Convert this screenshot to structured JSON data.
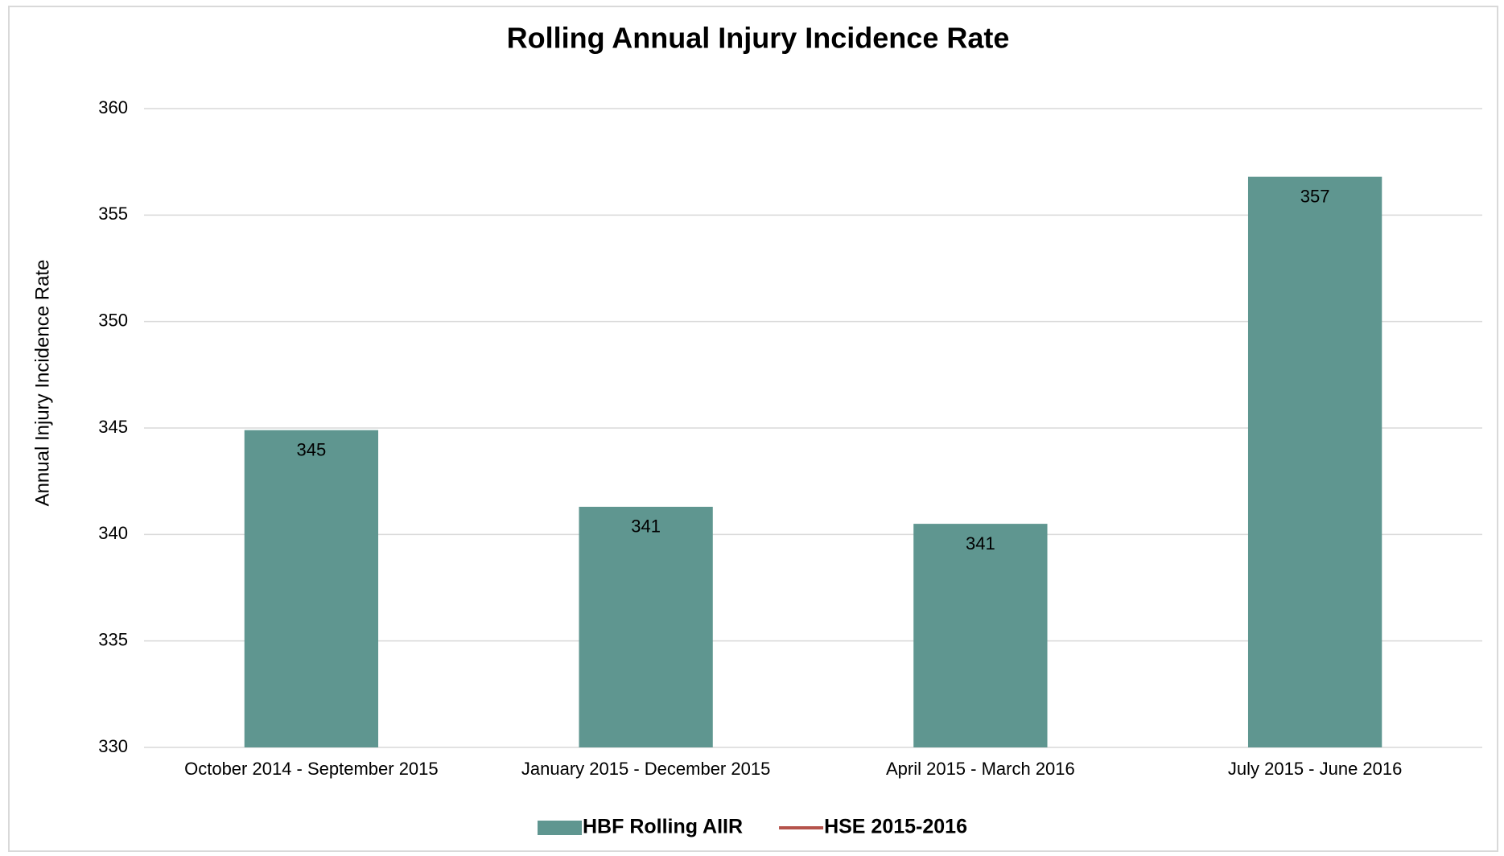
{
  "chart_data": {
    "type": "bar",
    "title": "Rolling Annual Injury Incidence Rate",
    "y_label": "Annual Injury Incidence Rate",
    "categories": [
      "October 2014 - September 2015",
      "January 2015 - December 2015",
      "April 2015 - March 2016",
      "July 2015 - June 2016"
    ],
    "series": [
      {
        "name": "HBF Rolling AIIR",
        "color": "#5f9690",
        "type": "bar",
        "values": [
          344.9,
          341.3,
          340.5,
          356.8
        ],
        "value_labels": [
          "345",
          "341",
          "341",
          "357"
        ]
      },
      {
        "name": "HSE 2015-2016",
        "color": "#b5534b",
        "type": "line",
        "values": [
          null,
          null,
          null,
          null
        ]
      }
    ],
    "ylim": [
      330,
      360
    ],
    "yticks": [
      330,
      335,
      340,
      345,
      350,
      355,
      360
    ],
    "grid": true
  }
}
